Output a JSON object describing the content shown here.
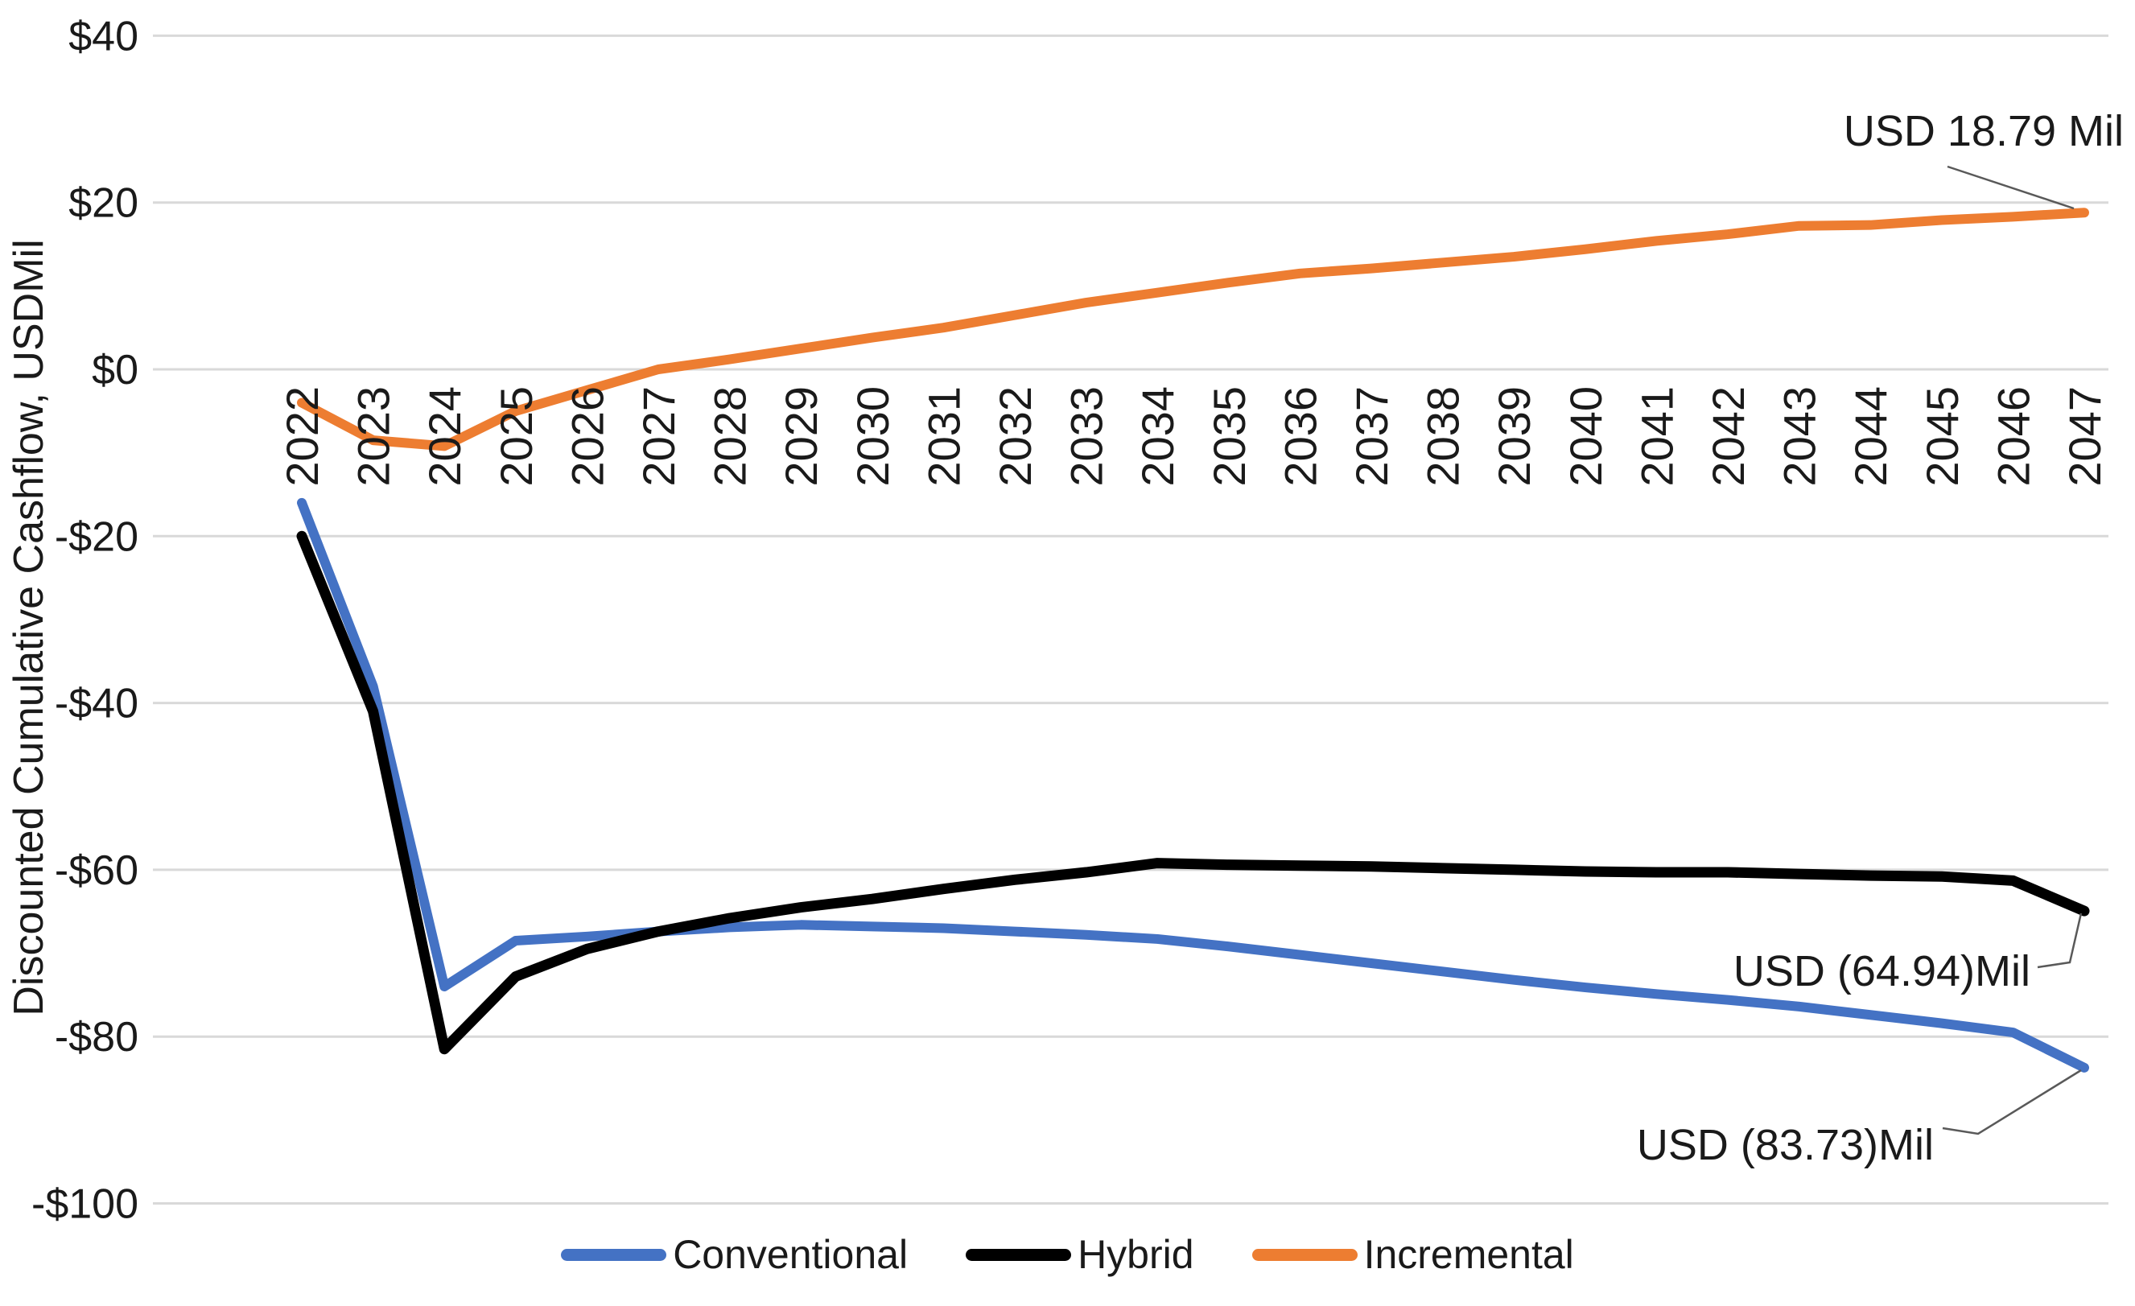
{
  "chart_data": {
    "type": "line",
    "title": "",
    "xlabel": "",
    "ylabel": "Discounted Cumulative Cashflow, USDMil",
    "ylim": [
      -100,
      40
    ],
    "ytick_values": [
      40,
      20,
      0,
      -20,
      -40,
      -60,
      -80,
      -100
    ],
    "ytick_labels": [
      "$40",
      "$20",
      "$0",
      "-$20",
      "-$40",
      "-$60",
      "-$80",
      "-$100"
    ],
    "grid": "horizontal",
    "legend_position": "bottom",
    "categories": [
      "2022",
      "2023",
      "2024",
      "2025",
      "2026",
      "2027",
      "2028",
      "2029",
      "2030",
      "2031",
      "2032",
      "2033",
      "2034",
      "2035",
      "2036",
      "2037",
      "2038",
      "2039",
      "2040",
      "2041",
      "2042",
      "2043",
      "2044",
      "2045",
      "2046",
      "2047"
    ],
    "series": [
      {
        "name": "Conventional",
        "color": "#4472C4",
        "values": [
          -16,
          -38,
          -74,
          -68.5,
          -68,
          -67.4,
          -66.9,
          -66.6,
          -66.8,
          -67,
          -67.4,
          -67.8,
          -68.3,
          -69.2,
          -70.2,
          -71.2,
          -72.2,
          -73.2,
          -74.1,
          -74.9,
          -75.6,
          -76.4,
          -77.4,
          -78.4,
          -79.5,
          -83.73
        ]
      },
      {
        "name": "Hybrid",
        "color": "#000000",
        "values": [
          -20,
          -41,
          -81.5,
          -72.8,
          -69.5,
          -67.4,
          -65.8,
          -64.5,
          -63.5,
          -62.3,
          -61.2,
          -60.3,
          -59.2,
          -59.4,
          -59.5,
          -59.6,
          -59.8,
          -60,
          -60.2,
          -60.3,
          -60.3,
          -60.5,
          -60.7,
          -60.8,
          -61.3,
          -64.94
        ]
      },
      {
        "name": "Incremental",
        "color": "#ED7D31",
        "values": [
          -4,
          -8.5,
          -9.2,
          -5,
          -2.5,
          0,
          1.2,
          2.5,
          3.8,
          5,
          6.5,
          8,
          9.2,
          10.4,
          11.5,
          12.1,
          12.8,
          13.5,
          14.4,
          15.4,
          16.2,
          17.2,
          17.3,
          17.9,
          18.3,
          18.79
        ]
      }
    ],
    "annotations": [
      {
        "text": "USD 18.79 Mil",
        "series": "Incremental",
        "year": "2047",
        "value": 18.79
      },
      {
        "text": "USD (64.94)Mil",
        "series": "Hybrid",
        "year": "2047",
        "value": -64.94
      },
      {
        "text": "USD (83.73)Mil",
        "series": "Conventional",
        "year": "2047",
        "value": -83.73
      }
    ]
  },
  "colors": {
    "gridline": "#D9D9D9",
    "leader_line": "#595959",
    "text": "#1a1a1a",
    "background": "#FFFFFF"
  }
}
